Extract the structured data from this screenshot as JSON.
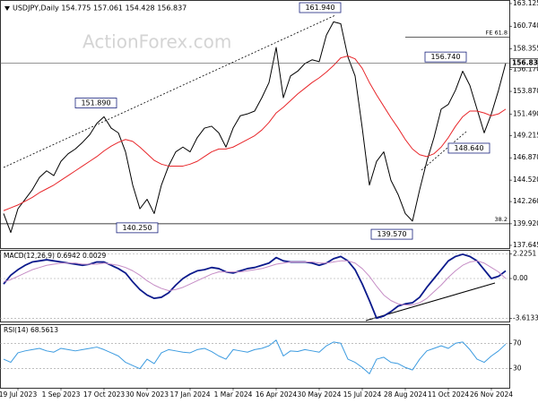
{
  "chart_data": [
    {
      "type": "line",
      "title": "USDJPY,Daily  154.775 157.061 154.428 156.837",
      "watermark": "ActionForex.com",
      "categories": [
        null,
        null,
        "19 Jul 2023",
        null,
        null,
        null,
        null,
        null,
        "1 Sep 2023",
        null,
        null,
        null,
        null,
        null,
        "17 Oct 2023",
        null,
        null,
        null,
        null,
        null,
        "30 Nov 2023",
        null,
        null,
        null,
        null,
        null,
        "17 Jan 2024",
        null,
        null,
        null,
        null,
        null,
        "1 Mar 2024",
        null,
        null,
        null,
        null,
        null,
        "16 Apr 2024",
        null,
        null,
        null,
        null,
        null,
        "30 May 2024",
        null,
        null,
        null,
        null,
        null,
        "15 Jul 2024",
        null,
        null,
        null,
        null,
        null,
        "28 Aug 2024",
        null,
        null,
        null,
        null,
        null,
        "11 Oct 2024",
        null,
        null,
        null,
        null,
        null,
        "26 Nov 2024",
        null,
        null
      ],
      "series": [
        {
          "color": "#000000",
          "values": [
            141.0,
            139.0,
            141.5,
            142.5,
            143.5,
            144.8,
            145.5,
            145.0,
            146.5,
            147.3,
            147.8,
            148.5,
            149.3,
            150.5,
            151.2,
            150.0,
            149.5,
            147.5,
            144.0,
            141.5,
            142.5,
            141.0,
            144.0,
            146.0,
            147.5,
            148.0,
            147.5,
            149.0,
            150.0,
            150.2,
            149.5,
            148.0,
            150.0,
            151.3,
            151.5,
            151.8,
            153.2,
            154.8,
            158.5,
            153.2,
            155.5,
            156.0,
            156.8,
            157.2,
            157.0,
            159.8,
            161.2,
            161.0,
            157.5,
            155.5,
            150.0,
            144.0,
            146.5,
            147.5,
            144.5,
            143.0,
            141.0,
            140.2,
            143.5,
            146.5,
            149.0,
            152.0,
            152.5,
            154.0,
            156.0,
            154.5,
            152.0,
            149.5,
            151.5,
            154.0,
            156.837
          ]
        },
        {
          "color": "#e8262a",
          "values": [
            141.3,
            141.6,
            141.9,
            142.3,
            142.7,
            143.2,
            143.6,
            144.0,
            144.5,
            145.0,
            145.5,
            146.0,
            146.5,
            147.0,
            147.6,
            148.1,
            148.5,
            148.8,
            148.6,
            148.0,
            147.3,
            146.6,
            146.2,
            146.0,
            146.0,
            146.0,
            146.2,
            146.5,
            147.0,
            147.5,
            147.8,
            147.8,
            148.0,
            148.4,
            148.8,
            149.2,
            149.8,
            150.6,
            151.6,
            152.2,
            152.9,
            153.6,
            154.2,
            154.8,
            155.3,
            155.9,
            156.6,
            157.4,
            157.6,
            157.3,
            156.3,
            154.8,
            153.5,
            152.3,
            151.1,
            150.0,
            148.8,
            147.8,
            147.2,
            147.0,
            147.3,
            148.0,
            149.0,
            150.2,
            151.2,
            151.8,
            151.8,
            151.6,
            151.3,
            151.5,
            152.0
          ]
        }
      ],
      "ylim": [
        137.36,
        163.5
      ],
      "yticks": [
        163.125,
        {
          "value": 160.74,
          "label": "160.740"
        },
        158.355,
        {
          "value": 156.17,
          "label": "156.170"
        },
        {
          "value": 153.87,
          "label": "153.870"
        },
        {
          "value": 151.49,
          "label": "151.490"
        },
        149.215,
        {
          "value": 146.87,
          "label": "146.870"
        },
        {
          "value": 144.52,
          "label": "144.520"
        },
        {
          "value": 142.26,
          "label": "142.260"
        },
        {
          "value": 139.92,
          "label": "139.920"
        },
        137.645
      ],
      "grid": false,
      "annotations": [
        {
          "value": 161.94,
          "label": "161.940"
        },
        {
          "value": 151.89,
          "label": "151.890"
        },
        {
          "value": 140.25,
          "label": "140.250"
        },
        {
          "value": 139.57,
          "label": "139.570"
        },
        {
          "value": 156.74,
          "label": "156.740"
        },
        {
          "value": 148.64,
          "label": "148.640"
        }
      ],
      "levels": [
        {
          "value": 159.6,
          "label": "FE 61.8"
        },
        {
          "value": 139.92,
          "label": "38.2"
        }
      ]
    },
    {
      "type": "line",
      "title": "MACD(12,26,9) 0.6942 0.0029",
      "series": [
        {
          "color": "#0b1a8c",
          "values": [
            -0.5,
            0.3,
            0.8,
            1.2,
            1.5,
            1.6,
            1.7,
            1.6,
            1.5,
            1.4,
            1.3,
            1.2,
            1.3,
            1.5,
            1.5,
            1.2,
            0.9,
            0.5,
            -0.3,
            -1.0,
            -1.5,
            -1.8,
            -1.7,
            -1.3,
            -0.6,
            0.0,
            0.4,
            0.7,
            0.8,
            1.0,
            0.9,
            0.6,
            0.5,
            0.7,
            0.9,
            1.0,
            1.2,
            1.4,
            1.9,
            1.6,
            1.5,
            1.5,
            1.5,
            1.4,
            1.2,
            1.4,
            1.8,
            2.0,
            1.6,
            0.8,
            -0.5,
            -2.0,
            -3.6,
            -3.4,
            -3.0,
            -2.5,
            -2.3,
            -2.2,
            -1.7,
            -0.8,
            0.0,
            0.8,
            1.6,
            2.0,
            2.2,
            2.0,
            1.6,
            0.8,
            0.0,
            0.2,
            0.6942
          ]
        },
        {
          "color": "#c58cc5",
          "values": [
            -0.3,
            -0.1,
            0.2,
            0.5,
            0.8,
            1.0,
            1.2,
            1.3,
            1.4,
            1.4,
            1.4,
            1.3,
            1.3,
            1.3,
            1.4,
            1.3,
            1.2,
            1.0,
            0.7,
            0.3,
            -0.2,
            -0.6,
            -0.9,
            -1.1,
            -1.0,
            -0.8,
            -0.5,
            -0.2,
            0.1,
            0.4,
            0.6,
            0.6,
            0.6,
            0.6,
            0.7,
            0.8,
            0.9,
            1.1,
            1.3,
            1.4,
            1.5,
            1.5,
            1.5,
            1.5,
            1.4,
            1.4,
            1.5,
            1.6,
            1.6,
            1.4,
            0.9,
            0.2,
            -0.7,
            -1.5,
            -2.0,
            -2.3,
            -2.4,
            -2.4,
            -2.2,
            -1.8,
            -1.2,
            -0.6,
            0.1,
            0.7,
            1.2,
            1.5,
            1.6,
            1.4,
            1.0,
            0.6,
            0.0029
          ]
        }
      ],
      "ylim": [
        -3.9,
        2.6
      ],
      "yticks": [
        2.2251,
        {
          "value": 0,
          "label": "0.00"
        },
        -3.6133
      ],
      "grid": true
    },
    {
      "type": "line",
      "title": "RSI(14) 68.5613",
      "series": [
        {
          "color": "#3c9be0",
          "values": [
            45,
            40,
            55,
            58,
            60,
            62,
            58,
            56,
            62,
            60,
            58,
            60,
            62,
            64,
            60,
            55,
            50,
            40,
            35,
            30,
            45,
            38,
            55,
            60,
            58,
            56,
            55,
            60,
            62,
            57,
            50,
            45,
            60,
            58,
            56,
            60,
            62,
            66,
            75,
            50,
            58,
            57,
            60,
            58,
            56,
            66,
            72,
            70,
            45,
            40,
            32,
            22,
            45,
            48,
            40,
            38,
            32,
            28,
            45,
            58,
            62,
            66,
            62,
            70,
            72,
            60,
            45,
            40,
            50,
            58,
            68.5613
          ]
        }
      ],
      "ylim": [
        0,
        100
      ],
      "yticks": [
        70,
        30
      ],
      "grid": true
    }
  ]
}
